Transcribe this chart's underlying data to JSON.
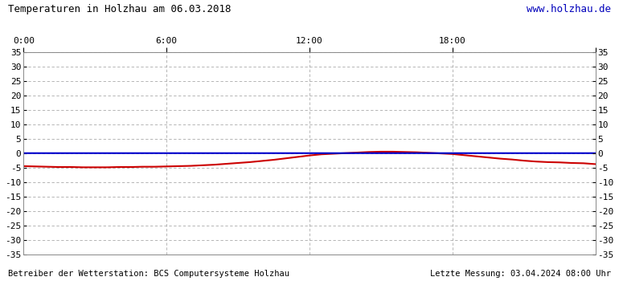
{
  "title_left": "Temperaturen in Holzhau am 06.03.2018",
  "title_right": "www.holzhau.de",
  "title_right_color": "#0000bb",
  "footer_left": "Betreiber der Wetterstation: BCS Computersysteme Holzhau",
  "footer_right": "Letzte Messung: 03.04.2024 08:00 Uhr",
  "footer_color": "#000000",
  "xlim": [
    0,
    1440
  ],
  "ylim": [
    -35,
    35
  ],
  "yticks": [
    -35,
    -30,
    -25,
    -20,
    -15,
    -10,
    -5,
    0,
    5,
    10,
    15,
    20,
    25,
    30,
    35
  ],
  "xticks": [
    0,
    360,
    720,
    1080,
    1440
  ],
  "xticklabels": [
    "0:00",
    "6:00",
    "12:00",
    "18:00",
    ""
  ],
  "grid_color": "#aaaaaa",
  "bg_color": "#ffffff",
  "blue_line_color": "#0000cc",
  "red_line_color": "#cc0000",
  "blue_line_y": 0.0,
  "red_line_data_x": [
    0,
    30,
    60,
    90,
    120,
    150,
    180,
    210,
    240,
    270,
    300,
    330,
    360,
    390,
    420,
    450,
    480,
    510,
    540,
    570,
    600,
    630,
    660,
    690,
    720,
    750,
    780,
    810,
    840,
    870,
    900,
    930,
    960,
    990,
    1020,
    1050,
    1080,
    1110,
    1140,
    1170,
    1200,
    1230,
    1260,
    1290,
    1320,
    1350,
    1380,
    1410,
    1440
  ],
  "red_line_data_y": [
    -4.5,
    -4.6,
    -4.7,
    -4.8,
    -4.8,
    -4.9,
    -4.9,
    -4.9,
    -4.8,
    -4.8,
    -4.7,
    -4.7,
    -4.6,
    -4.5,
    -4.4,
    -4.2,
    -4.0,
    -3.7,
    -3.4,
    -3.1,
    -2.7,
    -2.3,
    -1.8,
    -1.3,
    -0.8,
    -0.4,
    -0.2,
    0.0,
    0.2,
    0.4,
    0.5,
    0.5,
    0.4,
    0.3,
    0.1,
    -0.1,
    -0.3,
    -0.7,
    -1.1,
    -1.5,
    -1.9,
    -2.2,
    -2.6,
    -2.9,
    -3.1,
    -3.2,
    -3.4,
    -3.5,
    -3.8
  ]
}
